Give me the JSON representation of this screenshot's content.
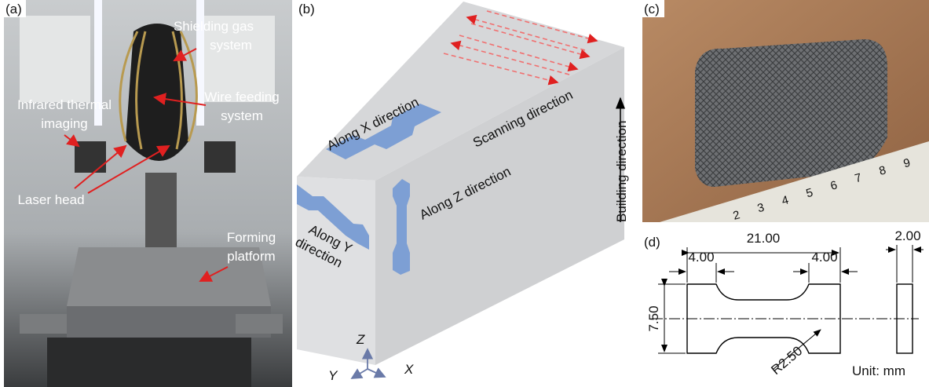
{
  "panel_a": {
    "label": "(a)",
    "annotations": [
      {
        "lines": [
          "Shielding gas",
          "system"
        ]
      },
      {
        "lines": [
          "Infrared thermal",
          "imaging"
        ]
      },
      {
        "lines": [
          "Wire feeding",
          "system"
        ]
      },
      {
        "lines": [
          "Laser head"
        ]
      },
      {
        "lines": [
          "Forming",
          "platform"
        ]
      }
    ]
  },
  "panel_b": {
    "label": "(b)",
    "along_x": "Along X direction",
    "scanning": "Scanning direction",
    "along_z": "Along Z direction",
    "along_y": [
      "Along Y",
      "direction"
    ],
    "axes": {
      "z": "Z",
      "y": "Y",
      "x": "X"
    }
  },
  "panel_c": {
    "label": "(c)",
    "building_direction": "Building direction",
    "ruler_numbers": [
      "2",
      "3",
      "4",
      "5",
      "6",
      "7",
      "8",
      "9"
    ]
  },
  "panel_d": {
    "label": "(d)",
    "length": "21.00",
    "grip_left": "4.00",
    "grip_right": "4.00",
    "thickness": "2.00",
    "width": "7.50",
    "radius": "R2.50",
    "unit": "Unit: mm"
  }
}
